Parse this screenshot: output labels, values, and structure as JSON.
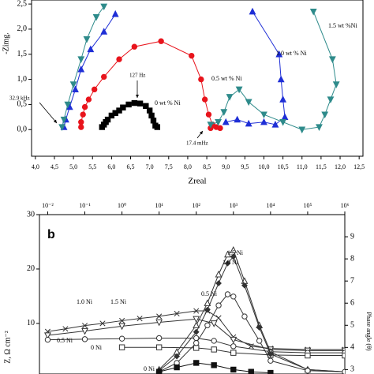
{
  "chart_data": [
    {
      "type": "scatter-line",
      "xlabel": "Zreal",
      "ylabel": "-Zimg.",
      "xlim": [
        3.9,
        12.6
      ],
      "ylim": [
        -0.53,
        2.58
      ],
      "xticks": [
        {
          "value": 4.0,
          "label": "4,0"
        },
        {
          "value": 4.5,
          "label": "4,5"
        },
        {
          "value": 5.0,
          "label": "5,0"
        },
        {
          "value": 5.5,
          "label": "5,5"
        },
        {
          "value": 6.0,
          "label": "6,0"
        },
        {
          "value": 6.5,
          "label": "6,5"
        },
        {
          "value": 7.0,
          "label": "7,0"
        },
        {
          "value": 7.5,
          "label": "7,5"
        },
        {
          "value": 8.0,
          "label": "8,0"
        },
        {
          "value": 8.5,
          "label": "8,5"
        },
        {
          "value": 9.0,
          "label": "9,0"
        },
        {
          "value": 9.5,
          "label": "9,5"
        },
        {
          "value": 10.0,
          "label": "10,0"
        },
        {
          "value": 10.5,
          "label": "10,5"
        },
        {
          "value": 11.0,
          "label": "11,0"
        },
        {
          "value": 11.5,
          "label": "11,5"
        },
        {
          "value": 12.0,
          "label": "12,0"
        },
        {
          "value": 12.5,
          "label": "12,5"
        }
      ],
      "yticks": [
        {
          "value": 0.0,
          "label": "0,0"
        },
        {
          "value": 0.5,
          "label": "0,5"
        },
        {
          "value": 1.0,
          "label": "1,0"
        },
        {
          "value": 1.5,
          "label": "1,5"
        },
        {
          "value": 2.0,
          "label": "2,0"
        },
        {
          "value": 2.5,
          "label": "2,5"
        }
      ],
      "series": [
        {
          "name": "0 wt % Ni",
          "color": "#000000",
          "marker": "square",
          "x": [
            5.75,
            5.8,
            5.85,
            5.9,
            6.0,
            6.1,
            6.2,
            6.3,
            6.45,
            6.6,
            6.75,
            6.9,
            7.0,
            7.05,
            7.1,
            7.15,
            7.2
          ],
          "values": [
            0.05,
            0.1,
            0.15,
            0.2,
            0.28,
            0.33,
            0.38,
            0.44,
            0.5,
            0.53,
            0.52,
            0.47,
            0.38,
            0.28,
            0.18,
            0.08,
            0.05
          ]
        },
        {
          "name": "0.5 wt % Ni",
          "color": "#e8141c",
          "marker": "circle",
          "x": [
            5.2,
            5.2,
            5.25,
            5.3,
            5.4,
            5.55,
            5.8,
            6.2,
            6.6,
            7.3,
            8.1,
            8.35,
            8.45,
            8.55,
            8.65,
            8.6,
            8.75,
            8.85
          ],
          "values": [
            0.05,
            0.15,
            0.3,
            0.45,
            0.6,
            0.8,
            1.05,
            1.4,
            1.65,
            1.76,
            1.47,
            1.0,
            0.6,
            0.3,
            0.1,
            0.03,
            0.05,
            0.03
          ]
        },
        {
          "name": "1.0 wt % Ni",
          "color": "#1f2fd6",
          "marker": "triangle",
          "x": [
            4.75,
            4.8,
            4.9,
            5.05,
            5.2,
            5.45,
            5.8,
            6.1,
            null,
            9.7,
            10.4,
            10.45,
            10.5,
            10.55,
            10.3,
            10.0,
            9.6,
            9.3,
            9.0
          ],
          "values": [
            0.05,
            0.2,
            0.45,
            0.8,
            1.2,
            1.6,
            1.95,
            2.3,
            null,
            2.35,
            1.5,
            1.0,
            0.6,
            0.25,
            0.1,
            0.15,
            0.12,
            0.2,
            0.15
          ]
        },
        {
          "name": "1.5 wt %Ni",
          "color": "#2e8b8b",
          "marker": "triangle-down",
          "x": [
            4.7,
            4.75,
            4.85,
            5.0,
            5.2,
            5.35,
            5.6,
            5.8,
            null,
            11.3,
            11.8,
            11.9,
            11.75,
            11.6,
            11.45,
            11.0,
            10.5,
            10.0,
            9.6,
            9.35,
            9.1,
            8.95,
            8.8,
            8.6
          ],
          "values": [
            0.05,
            0.2,
            0.5,
            0.9,
            1.4,
            1.8,
            2.24,
            2.45,
            null,
            2.35,
            1.4,
            0.9,
            0.6,
            0.3,
            0.05,
            0.0,
            0.15,
            0.3,
            0.55,
            0.8,
            0.65,
            0.35,
            0.15,
            0.1
          ]
        }
      ],
      "annotations": [
        "32.9 kHz",
        "127 Hz",
        "17.4 mHz"
      ]
    },
    {
      "type": "scatter-line",
      "panel_label": "b",
      "ylabel": "Z, Ω cm⁻²",
      "y2label": "Phase angle (θ)",
      "xscale": "log",
      "xaxis": "top",
      "xlim": [
        0.006,
        1000000
      ],
      "ylim": [
        0.7,
        30
      ],
      "y2lim": [
        2.8,
        10
      ],
      "xticks": [
        {
          "value": 0.01,
          "label": "10⁻²"
        },
        {
          "value": 0.1,
          "label": "10⁻¹"
        },
        {
          "value": 1,
          "label": "10⁰"
        },
        {
          "value": 10,
          "label": "10¹"
        },
        {
          "value": 100,
          "label": "10²"
        },
        {
          "value": 1000,
          "label": "10³"
        },
        {
          "value": 10000,
          "label": "10⁴"
        },
        {
          "value": 100000,
          "label": "10⁵"
        },
        {
          "value": 1000000,
          "label": "10⁶"
        }
      ],
      "yticks": [
        10,
        20,
        30
      ],
      "y2ticks": [
        3,
        4,
        5,
        6,
        7,
        8,
        9
      ],
      "series": [
        {
          "name": "1.0 Ni",
          "color": "#333333",
          "marker": "x",
          "x": [
            0.01,
            0.03,
            0.1,
            0.3,
            1,
            3,
            10,
            30,
            100,
            200,
            400,
            1000,
            3000,
            10000,
            100000,
            1000000
          ],
          "values": [
            8.5,
            9,
            9.6,
            10,
            10.5,
            10.9,
            11.3,
            11.8,
            12.3,
            12.3,
            11,
            7.5,
            5.8,
            5.4,
            5.2,
            5.2
          ]
        },
        {
          "name": "1.5 Ni",
          "color": "#333333",
          "marker": "triangle-down-open",
          "x": [
            0.01,
            0.1,
            1,
            10,
            100,
            300,
            1000,
            10000,
            100000,
            1000000
          ],
          "values": [
            7.8,
            8.6,
            9.5,
            10.2,
            10.8,
            10,
            7,
            5.2,
            5.0,
            5.0
          ]
        },
        {
          "name": "0.5 Ni",
          "color": "#333333",
          "marker": "circle-open",
          "x": [
            0.01,
            0.1,
            1,
            10,
            100,
            300,
            1000,
            10000,
            100000,
            1000000
          ],
          "values": [
            7.0,
            7.1,
            7.2,
            7.3,
            7.3,
            6.8,
            5.8,
            4.8,
            4.6,
            4.6
          ]
        },
        {
          "name": "0 Ni",
          "color": "#333333",
          "marker": "square-open",
          "x": [
            1,
            10,
            100,
            300,
            1000,
            10000,
            100000,
            1000000
          ],
          "values": [
            5.6,
            5.6,
            5.5,
            5.2,
            4.6,
            4.2,
            4.1,
            4.1
          ]
        },
        {
          "name": "1.5 Ni",
          "color": "#333333",
          "marker": "triangle-open",
          "axis": "y2",
          "x": [
            10,
            30,
            100,
            200,
            400,
            700,
            1000,
            2000,
            5000,
            10000,
            100000,
            1000000
          ],
          "values": [
            3.0,
            3.8,
            5.0,
            6.0,
            7.3,
            8.2,
            8.4,
            7.0,
            5.0,
            3.8,
            3.0,
            2.9
          ]
        },
        {
          "name": "1.0 Ni",
          "color": "#333333",
          "marker": "diamond",
          "axis": "y2",
          "x": [
            10,
            30,
            100,
            200,
            400,
            700,
            1000,
            2000,
            5000,
            10000,
            100000,
            1000000
          ],
          "values": [
            2.95,
            3.6,
            4.7,
            5.7,
            6.9,
            7.8,
            8.1,
            6.8,
            4.9,
            3.7,
            3.0,
            2.9
          ]
        },
        {
          "name": "0.5 Ni",
          "color": "#333333",
          "marker": "circle-open",
          "axis": "y2",
          "x": [
            10,
            30,
            100,
            200,
            400,
            700,
            1000,
            2000,
            5000,
            10000,
            100000,
            1000000
          ],
          "values": [
            2.9,
            3.3,
            4.2,
            5.0,
            5.9,
            6.4,
            6.3,
            5.4,
            4.3,
            3.4,
            2.95,
            2.9
          ]
        },
        {
          "name": "0 Ni",
          "color": "#111111",
          "marker": "square",
          "axis": "y2",
          "x": [
            10,
            30,
            100,
            300,
            1000,
            3000,
            10000
          ],
          "values": [
            2.9,
            3.1,
            3.3,
            3.2,
            3.0,
            2.9,
            2.85
          ]
        }
      ]
    }
  ]
}
